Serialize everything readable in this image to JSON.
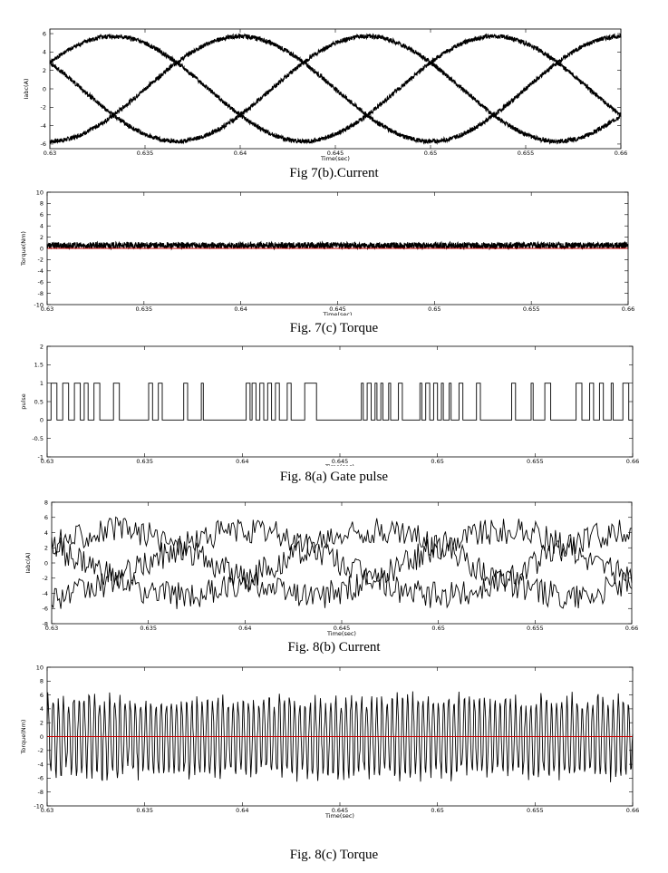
{
  "figures": [
    {
      "caption": "Fig 7(b).Current"
    },
    {
      "caption": "Fig. 7(c)   Torque"
    },
    {
      "caption": "Fig. 8(a)     Gate pulse"
    },
    {
      "caption": "Fig. 8(b)  Current"
    },
    {
      "caption": "Fig. 8(c)  Torque"
    }
  ],
  "chart_data": [
    {
      "type": "line",
      "xlabel": "Time(sec)",
      "ylabel": "Iabc(A)",
      "xlim": [
        0.63,
        0.66
      ],
      "ylim": [
        -6.5,
        6.5
      ],
      "xticks": [
        0.63,
        0.635,
        0.64,
        0.645,
        0.65,
        0.655,
        0.66
      ],
      "xtick_labels": [
        "0.63",
        "0.635",
        "0.64",
        "0.645",
        "0.65",
        "0.655",
        "0.66"
      ],
      "yticks": [
        6,
        4,
        2,
        0,
        -2,
        -4,
        -6
      ],
      "ytick_labels": [
        "6",
        "4",
        "2",
        "0",
        "-2",
        "-4",
        "-6"
      ],
      "series": [
        {
          "color": "#000000",
          "amplitude": 5.7,
          "frequency_hz": 50,
          "phase_deg": 90,
          "ripple": 0.25
        },
        {
          "color": "#000000",
          "amplitude": 5.7,
          "frequency_hz": 50,
          "phase_deg": -30,
          "ripple": 0.25
        },
        {
          "color": "#000000",
          "amplitude": 5.7,
          "frequency_hz": 50,
          "phase_deg": 210,
          "ripple": 0.25
        }
      ]
    },
    {
      "type": "line",
      "xlabel": "Time(sec)",
      "ylabel": "Torque(Nm)",
      "xlim": [
        0.63,
        0.66
      ],
      "ylim": [
        -10,
        10
      ],
      "xticks": [
        0.63,
        0.635,
        0.64,
        0.645,
        0.65,
        0.655,
        0.66
      ],
      "xtick_labels": [
        "0.63",
        "0.635",
        "0.64",
        "0.645",
        "0.65",
        "0.655",
        "0.66"
      ],
      "yticks": [
        10,
        8,
        6,
        4,
        2,
        0,
        -2,
        -4,
        -6,
        -8,
        -10
      ],
      "ytick_labels": [
        "10",
        "8",
        "6",
        "4",
        "2",
        "0",
        "-2",
        "-4",
        "-6",
        "-8",
        "-10"
      ],
      "series": [
        {
          "color": "#000000",
          "mean": 0.5,
          "ripple": 0.6
        },
        {
          "color": "#cc0000",
          "constant": 0
        }
      ]
    },
    {
      "type": "line",
      "xlabel": "Time(sec)",
      "ylabel": "pulse",
      "xlim": [
        0.63,
        0.66
      ],
      "ylim": [
        -1,
        2
      ],
      "xticks": [
        0.63,
        0.635,
        0.64,
        0.645,
        0.65,
        0.655,
        0.66
      ],
      "xtick_labels": [
        "0.63",
        "0.635",
        "0.64",
        "0.645",
        "0.65",
        "0.655",
        "0.66"
      ],
      "yticks": [
        2,
        1.5,
        1,
        0.5,
        0,
        -0.5,
        -1
      ],
      "ytick_labels": [
        "2",
        "1.5",
        "1",
        "0.5",
        "0",
        "-0.5",
        "-1"
      ],
      "series": [
        {
          "color": "#000000",
          "step": true,
          "transitions": [
            0.6302,
            0.6305,
            0.6308,
            0.6311,
            0.6314,
            0.6317,
            0.6319,
            0.6321,
            0.6324,
            0.6327,
            0.6334,
            0.6337,
            0.6352,
            0.6354,
            0.6357,
            0.6359,
            0.637,
            0.6372,
            0.6379,
            0.638,
            0.6402,
            0.6404,
            0.6405,
            0.6407,
            0.6409,
            0.6411,
            0.6413,
            0.6415,
            0.6417,
            0.6419,
            0.6423,
            0.6425,
            0.6432,
            0.6438,
            0.6461,
            0.6462,
            0.6464,
            0.6466,
            0.6468,
            0.6469,
            0.6471,
            0.6472,
            0.6475,
            0.6476,
            0.648,
            0.6482,
            0.6491,
            0.6492,
            0.6494,
            0.6496,
            0.6498,
            0.65,
            0.6502,
            0.6503,
            0.6506,
            0.6507,
            0.6511,
            0.6513,
            0.652,
            0.6522,
            0.6538,
            0.654,
            0.6548,
            0.6549,
            0.6555,
            0.6558,
            0.6571,
            0.6574,
            0.6578,
            0.658,
            0.6583,
            0.6585,
            0.6589,
            0.659,
            0.6595,
            0.6598
          ]
        }
      ]
    },
    {
      "type": "line",
      "xlabel": "Time(sec)",
      "ylabel": "Iabc(A)",
      "xlim": [
        0.63,
        0.66
      ],
      "ylim": [
        -8,
        8
      ],
      "xticks": [
        0.63,
        0.635,
        0.64,
        0.645,
        0.65,
        0.655,
        0.66
      ],
      "xtick_labels": [
        "0.63",
        "0.635",
        "0.64",
        "0.645",
        "0.65",
        "0.655",
        "0.66"
      ],
      "yticks": [
        8,
        6,
        4,
        2,
        0,
        -2,
        -4,
        -6,
        -8
      ],
      "ytick_labels": [
        "8",
        "6",
        "4",
        "2",
        "0",
        "-2",
        "-4",
        "-6",
        "-8"
      ],
      "series": [
        {
          "color": "#000000",
          "amplitude": 4.3,
          "frequency_hz": 50,
          "phase_deg": 90,
          "ripple": 1.8
        },
        {
          "color": "#000000",
          "amplitude": 4.3,
          "frequency_hz": 50,
          "phase_deg": -30,
          "ripple": 1.8
        },
        {
          "color": "#000000",
          "amplitude": 4.3,
          "frequency_hz": 50,
          "phase_deg": 210,
          "ripple": 1.8
        }
      ]
    },
    {
      "type": "line",
      "xlabel": "Time(sec)",
      "ylabel": "Torque(Nm)",
      "xlim": [
        0.63,
        0.66
      ],
      "ylim": [
        -10,
        10
      ],
      "xticks": [
        0.63,
        0.635,
        0.64,
        0.645,
        0.65,
        0.655,
        0.66
      ],
      "xtick_labels": [
        "0.63",
        "0.635",
        "0.64",
        "0.645",
        "0.65",
        "0.655",
        "0.66"
      ],
      "yticks": [
        10,
        8,
        6,
        4,
        2,
        0,
        -2,
        -4,
        -6,
        -8,
        -10
      ],
      "ytick_labels": [
        "10",
        "8",
        "6",
        "4",
        "2",
        "0",
        "-2",
        "-4",
        "-6",
        "-8",
        "-10"
      ],
      "series": [
        {
          "color": "#000000",
          "mean": 0,
          "oscillation_amplitude": 5.5,
          "oscillation_hz": 3800
        },
        {
          "color": "#cc0000",
          "constant": 0
        }
      ]
    }
  ]
}
